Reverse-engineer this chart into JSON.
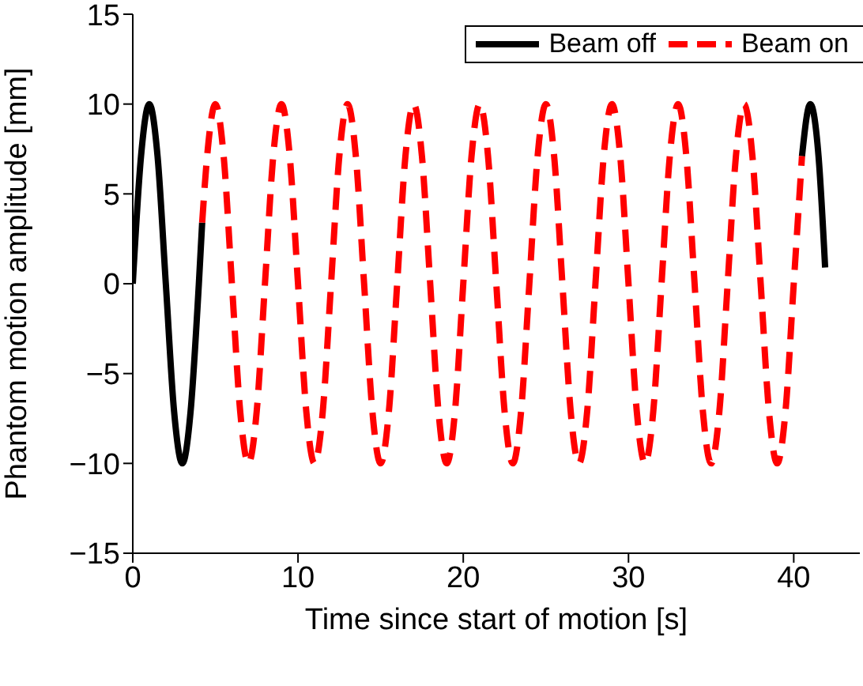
{
  "chart_data": {
    "type": "line",
    "xlabel": "Time since start of motion [s]",
    "ylabel": "Phantom motion amplitude [mm]",
    "x": [
      0,
      0.5,
      1,
      1.5,
      2,
      2.5,
      3,
      3.5,
      4,
      4.2,
      4.5,
      5,
      5.5,
      6,
      6.5,
      7,
      7.5,
      8,
      8.5,
      9,
      9.5,
      10,
      10.5,
      11,
      11.5,
      12,
      12.5,
      13,
      13.5,
      14,
      14.5,
      15,
      15.5,
      16,
      16.5,
      17,
      17.5,
      18,
      18.5,
      19,
      19.5,
      20,
      20.5,
      21,
      21.5,
      22,
      22.5,
      23,
      23.5,
      24,
      24.5,
      25,
      25.5,
      26,
      26.5,
      27,
      27.5,
      28,
      28.5,
      29,
      29.5,
      30,
      30.5,
      31,
      31.5,
      32,
      32.5,
      33,
      33.5,
      34,
      34.5,
      35,
      35.5,
      36,
      36.5,
      37,
      37.5,
      38,
      38.5,
      39,
      39.5,
      40,
      40.5,
      41,
      41.5,
      41.9
    ],
    "series": [
      {
        "name": "Beam off",
        "color": "#000000",
        "line_style": "solid",
        "values": [
          0,
          7.1,
          10,
          7.1,
          0,
          -7.1,
          -10,
          -7.1,
          0,
          3.4,
          null,
          null,
          null,
          null,
          null,
          null,
          null,
          null,
          null,
          null,
          null,
          null,
          null,
          null,
          null,
          null,
          null,
          null,
          null,
          null,
          null,
          null,
          null,
          null,
          null,
          null,
          null,
          null,
          null,
          null,
          null,
          null,
          null,
          null,
          null,
          null,
          null,
          null,
          null,
          null,
          null,
          null,
          null,
          null,
          null,
          null,
          null,
          null,
          null,
          null,
          null,
          null,
          null,
          null,
          null,
          null,
          null,
          null,
          null,
          null,
          null,
          null,
          null,
          null,
          null,
          null,
          null,
          null,
          null,
          null,
          null,
          null,
          7.1,
          10,
          7.1,
          0.9
        ]
      },
      {
        "name": "Beam on",
        "color": "#ff0000",
        "line_style": "dashed",
        "values": [
          null,
          null,
          null,
          null,
          null,
          null,
          null,
          null,
          null,
          3.4,
          7.1,
          10,
          7.1,
          0,
          -7.1,
          -10,
          -7.1,
          0,
          7.1,
          10,
          7.1,
          0,
          -7.1,
          -10,
          -7.1,
          0,
          7.1,
          10,
          7.1,
          0,
          -7.1,
          -10,
          -7.1,
          0,
          7.1,
          10,
          7.1,
          0,
          -7.1,
          -10,
          -7.1,
          0,
          7.1,
          10,
          7.1,
          0,
          -7.1,
          -10,
          -7.1,
          0,
          7.1,
          10,
          7.1,
          0,
          -7.1,
          -10,
          -7.1,
          0,
          7.1,
          10,
          7.1,
          0,
          -7.1,
          -10,
          -7.1,
          0,
          7.1,
          10,
          7.1,
          0,
          -7.1,
          -10,
          -7.1,
          0,
          7.1,
          10,
          7.1,
          0,
          -7.1,
          -10,
          -7.1,
          0,
          7.1,
          null,
          null,
          null
        ]
      }
    ],
    "xlim": [
      0,
      44
    ],
    "xticks": [
      0,
      10,
      20,
      30,
      40
    ],
    "ylim": [
      -15,
      15
    ],
    "yticks": [
      -15,
      -10,
      -5,
      0,
      5,
      10,
      15
    ],
    "grid": false,
    "legend": "top right",
    "marker": "none"
  }
}
